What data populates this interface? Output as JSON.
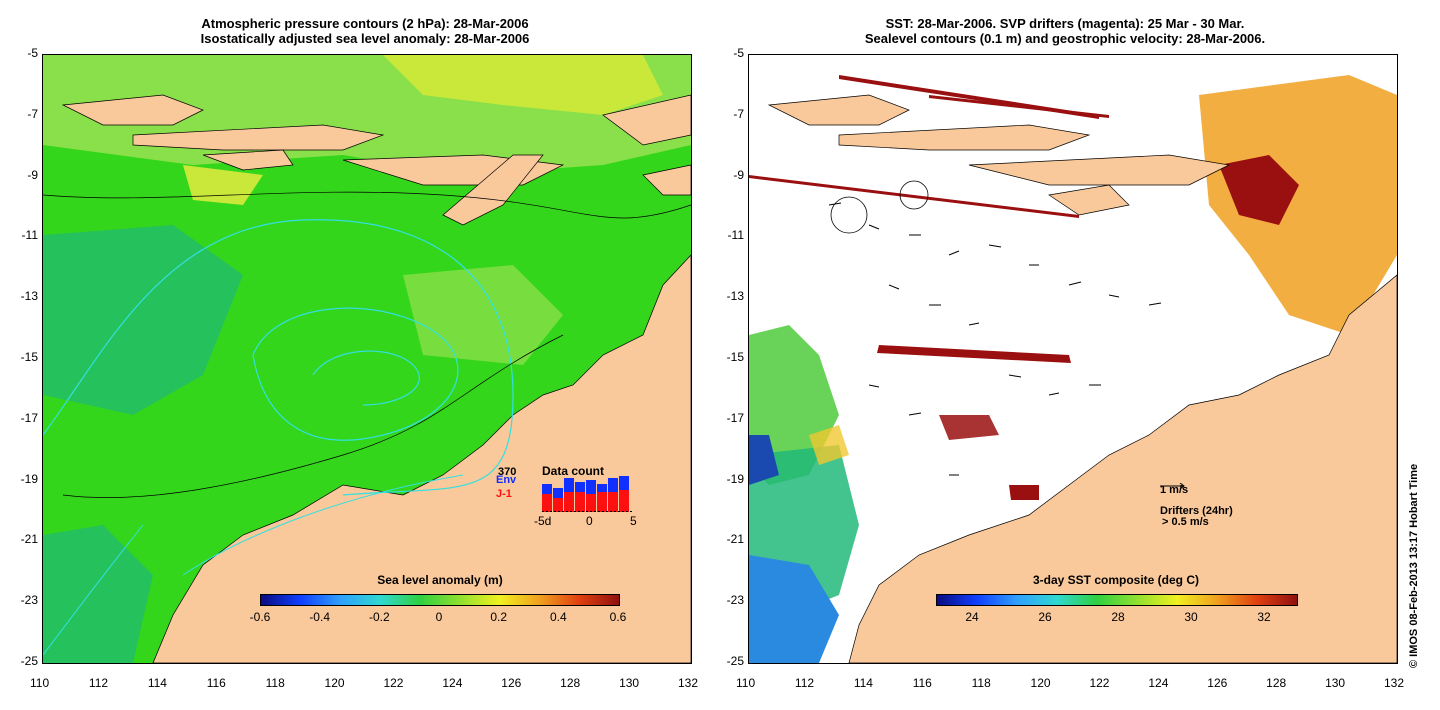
{
  "left_panel": {
    "title_line1": "Atmospheric pressure contours (2 hPa): 28-Mar-2006",
    "title_line2": "Isostatically adjusted sea level anomaly: 28-Mar-2006",
    "colorbar_title": "Sea level anomaly (m)",
    "colorbar_ticks": [
      "-0.6",
      "-0.4",
      "-0.2",
      "0",
      "0.2",
      "0.4",
      "0.6"
    ],
    "inset": {
      "title": "Data count",
      "count": "370",
      "env_label": "Env",
      "j1_label": "J-1",
      "x_ticks": [
        "-5d",
        "0",
        "5"
      ]
    }
  },
  "right_panel": {
    "title_line1": "SST: 28-Mar-2006. SVP drifters (magenta): 25 Mar - 30 Mar.",
    "title_line2": "Sealevel contours (0.1 m) and geostrophic velocity: 28-Mar-2006.",
    "colorbar_title": "3-day SST composite (deg C)",
    "colorbar_ticks": [
      "24",
      "26",
      "28",
      "30",
      "32"
    ],
    "velocity_scale": "1 m/s",
    "drifters_label": "Drifters (24hr)",
    "drifters_scale": "> 0.5 m/s"
  },
  "axes": {
    "x_ticks": [
      "110",
      "112",
      "114",
      "116",
      "118",
      "120",
      "122",
      "124",
      "126",
      "128",
      "130",
      "132"
    ],
    "y_ticks": [
      "-5",
      "-7",
      "-9",
      "-11",
      "-13",
      "-15",
      "-17",
      "-19",
      "-21",
      "-23",
      "-25"
    ]
  },
  "copyright": "© IMOS 08-Feb-2013 13:17 Hobart Time",
  "colors": {
    "land": "#f9c89b",
    "ocean_green": "#33d61a",
    "ocean_light": "#8ae04a",
    "ocean_yellow": "#c9e83a",
    "ocean_teal": "#1fb87a",
    "contour_cyan": "#33e0e0",
    "sst_red": "#9a0f0f",
    "sst_orange": "#f0a020"
  }
}
